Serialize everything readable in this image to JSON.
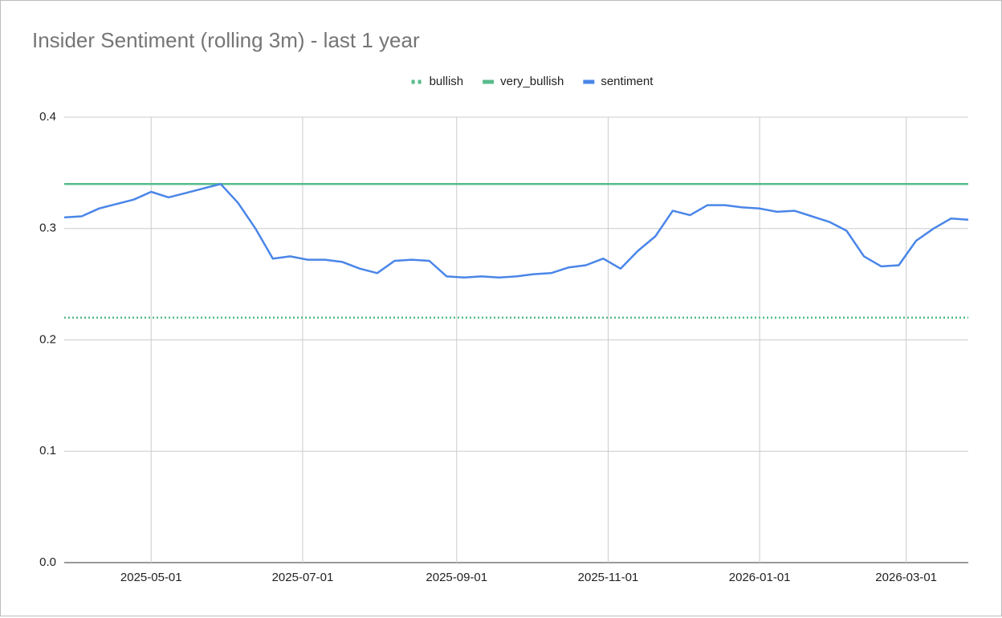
{
  "chart_data": {
    "type": "line",
    "title": "Insider Sentiment (rolling 3m) - last 1 year",
    "x": [
      "2025-03-27",
      "2025-04-03",
      "2025-04-10",
      "2025-04-17",
      "2025-04-24",
      "2025-05-01",
      "2025-05-08",
      "2025-05-15",
      "2025-05-22",
      "2025-05-29",
      "2025-06-05",
      "2025-06-12",
      "2025-06-19",
      "2025-06-26",
      "2025-07-03",
      "2025-07-10",
      "2025-07-17",
      "2025-07-24",
      "2025-07-31",
      "2025-08-07",
      "2025-08-14",
      "2025-08-21",
      "2025-08-28",
      "2025-09-04",
      "2025-09-11",
      "2025-09-18",
      "2025-09-25",
      "2025-10-02",
      "2025-10-09",
      "2025-10-16",
      "2025-10-23",
      "2025-10-30",
      "2025-11-06",
      "2025-11-13",
      "2025-11-20",
      "2025-11-27",
      "2025-12-04",
      "2025-12-11",
      "2025-12-18",
      "2025-12-25",
      "2026-01-01",
      "2026-01-08",
      "2026-01-15",
      "2026-01-22",
      "2026-01-29",
      "2026-02-05",
      "2026-02-12",
      "2026-02-19",
      "2026-02-26",
      "2026-03-05",
      "2026-03-12",
      "2026-03-19",
      "2026-03-26"
    ],
    "series": [
      {
        "name": "bullish",
        "color": "#57bb8a",
        "dash": "dotted",
        "values": [
          0.22,
          0.22,
          0.22,
          0.22,
          0.22,
          0.22,
          0.22,
          0.22,
          0.22,
          0.22,
          0.22,
          0.22,
          0.22,
          0.22,
          0.22,
          0.22,
          0.22,
          0.22,
          0.22,
          0.22,
          0.22,
          0.22,
          0.22,
          0.22,
          0.22,
          0.22,
          0.22,
          0.22,
          0.22,
          0.22,
          0.22,
          0.22,
          0.22,
          0.22,
          0.22,
          0.22,
          0.22,
          0.22,
          0.22,
          0.22,
          0.22,
          0.22,
          0.22,
          0.22,
          0.22,
          0.22,
          0.22,
          0.22,
          0.22,
          0.22,
          0.22,
          0.22,
          0.22
        ]
      },
      {
        "name": "very_bullish",
        "color": "#57bb8a",
        "dash": "solid",
        "values": [
          0.34,
          0.34,
          0.34,
          0.34,
          0.34,
          0.34,
          0.34,
          0.34,
          0.34,
          0.34,
          0.34,
          0.34,
          0.34,
          0.34,
          0.34,
          0.34,
          0.34,
          0.34,
          0.34,
          0.34,
          0.34,
          0.34,
          0.34,
          0.34,
          0.34,
          0.34,
          0.34,
          0.34,
          0.34,
          0.34,
          0.34,
          0.34,
          0.34,
          0.34,
          0.34,
          0.34,
          0.34,
          0.34,
          0.34,
          0.34,
          0.34,
          0.34,
          0.34,
          0.34,
          0.34,
          0.34,
          0.34,
          0.34,
          0.34,
          0.34,
          0.34,
          0.34,
          0.34
        ]
      },
      {
        "name": "sentiment",
        "color": "#4a86e8",
        "dash": "solid",
        "values": [
          0.31,
          0.311,
          0.318,
          0.322,
          0.326,
          0.333,
          0.328,
          0.332,
          0.336,
          0.34,
          0.323,
          0.3,
          0.273,
          0.275,
          0.272,
          0.272,
          0.27,
          0.264,
          0.26,
          0.271,
          0.272,
          0.271,
          0.257,
          0.256,
          0.257,
          0.256,
          0.257,
          0.259,
          0.26,
          0.265,
          0.267,
          0.273,
          0.264,
          0.28,
          0.293,
          0.316,
          0.312,
          0.321,
          0.321,
          0.319,
          0.318,
          0.315,
          0.316,
          0.311,
          0.306,
          0.298,
          0.275,
          0.266,
          0.267,
          0.289,
          0.3,
          0.309,
          0.308
        ]
      }
    ],
    "xlim": [
      "2025-03-27",
      "2026-03-26"
    ],
    "xticks": [
      "2025-05-01",
      "2025-07-01",
      "2025-09-01",
      "2025-11-01",
      "2026-01-01",
      "2026-03-01"
    ],
    "ylim": [
      0,
      0.4
    ],
    "yticks": [
      {
        "value": 0,
        "label": "0.0"
      },
      0.1,
      0.2,
      0.3,
      0.4
    ],
    "grid": true,
    "legend": "top"
  }
}
